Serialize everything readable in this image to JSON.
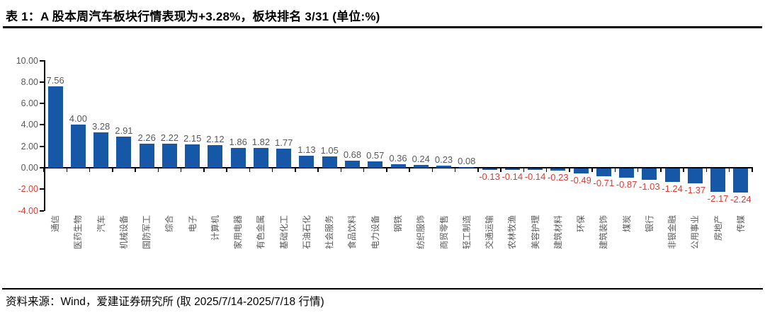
{
  "title": "表 1：A 股本周汽车板块行情表现为+3.28%，板块排名 3/31 (单位:%)",
  "footer": "资料来源：Wind，爱建证券研究所 (取 2025/7/14-2025/7/18 行情)",
  "colors": {
    "bar": "#1757A8",
    "axis": "#000000",
    "tick_label_gray": "#595959",
    "negative_red": "#E23B32",
    "title_text": "#000000"
  },
  "chart_data": {
    "type": "bar",
    "title": "表 1：A 股本周汽车板块行情表现为+3.28%，板块排名 3/31 (单位:%)",
    "xlabel": "",
    "ylabel": "",
    "ylim": [
      -4,
      10
    ],
    "yticks": [
      10,
      8,
      6,
      4,
      2,
      0,
      -2,
      -4
    ],
    "grid": false,
    "legend": false,
    "value_labels_decimals": 2,
    "categories": [
      "通信",
      "医药生物",
      "汽车",
      "机械设备",
      "国防军工",
      "综合",
      "电子",
      "计算机",
      "家用电器",
      "有色金属",
      "基础化工",
      "石油石化",
      "社会服务",
      "食品饮料",
      "电力设备",
      "钢铁",
      "纺织服饰",
      "商贸零售",
      "轻工制造",
      "交通运输",
      "农林牧渔",
      "美容护理",
      "建筑材料",
      "环保",
      "建筑装饰",
      "煤炭",
      "银行",
      "非银金融",
      "公用事业",
      "房地产",
      "传媒"
    ],
    "values": [
      7.56,
      4.0,
      3.28,
      2.91,
      2.26,
      2.22,
      2.15,
      2.12,
      1.86,
      1.82,
      1.77,
      1.13,
      1.05,
      0.68,
      0.57,
      0.36,
      0.24,
      0.23,
      0.08,
      -0.13,
      -0.14,
      -0.14,
      -0.23,
      -0.49,
      -0.71,
      -0.87,
      -1.03,
      -1.24,
      -1.37,
      -2.17,
      -2.24
    ]
  }
}
